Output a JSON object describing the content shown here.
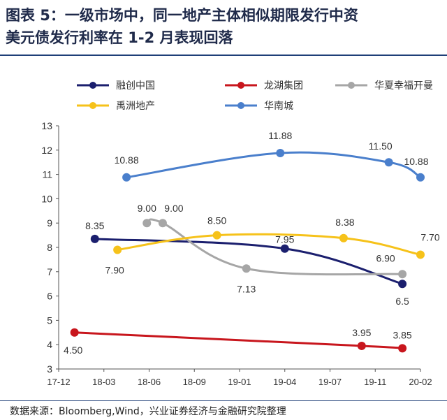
{
  "title_line1": "图表 5：一级市场中，同一地产主体相似期限发行中资",
  "title_line2": "美元债发行利率在 1-2 月表现回落",
  "source": "数据来源：Bloomberg,Wind，兴业证券经济与金融研究院整理",
  "chart_data": {
    "type": "line",
    "title": "",
    "xlabel": "",
    "ylabel": "",
    "x_ticks": [
      "17-12",
      "18-03",
      "18-06",
      "18-09",
      "19-01",
      "19-04",
      "19-07",
      "19-11",
      "20-02"
    ],
    "y_ticks": [
      3,
      4,
      5,
      6,
      7,
      8,
      9,
      10,
      11,
      12,
      13
    ],
    "ylim": [
      3,
      13
    ],
    "grid": false,
    "legend_position": "top",
    "series": [
      {
        "name": "融创中国",
        "color": "#1b1f6e",
        "points": [
          {
            "x": 0.8,
            "y": 8.35
          },
          {
            "x": 5.0,
            "y": 7.95
          },
          {
            "x": 7.6,
            "y": 6.5
          }
        ],
        "labels": [
          "8.35",
          "",
          "6.5"
        ]
      },
      {
        "name": "龙湖集团",
        "color": "#c8161d",
        "points": [
          {
            "x": 0.35,
            "y": 4.5
          },
          {
            "x": 6.7,
            "y": 3.95
          },
          {
            "x": 7.6,
            "y": 3.85
          }
        ],
        "labels": [
          "4.50",
          "3.95",
          "3.85"
        ]
      },
      {
        "name": "华夏幸福开曼",
        "color": "#a6a6a6",
        "points": [
          {
            "x": 1.95,
            "y": 9.0
          },
          {
            "x": 2.3,
            "y": 9.0
          },
          {
            "x": 4.15,
            "y": 7.13
          },
          {
            "x": 7.6,
            "y": 6.9
          }
        ],
        "labels": [
          "9.00",
          "9.00",
          "7.13",
          "6.90"
        ]
      },
      {
        "name": "禹洲地产",
        "color": "#f6c21a",
        "points": [
          {
            "x": 1.3,
            "y": 7.9
          },
          {
            "x": 3.5,
            "y": 8.5
          },
          {
            "x": 6.3,
            "y": 8.38
          },
          {
            "x": 8.0,
            "y": 7.7
          }
        ],
        "labels": [
          "7.90",
          "8.50",
          "8.38",
          "7.70"
        ]
      },
      {
        "name": "华南城",
        "color": "#4a7fcc",
        "points": [
          {
            "x": 1.5,
            "y": 10.88
          },
          {
            "x": 4.9,
            "y": 11.88
          },
          {
            "x": 7.3,
            "y": 11.5
          },
          {
            "x": 8.0,
            "y": 10.88
          }
        ],
        "labels": [
          "10.88",
          "11.88",
          "11.50",
          "10.88"
        ]
      }
    ],
    "extra_labels": [
      {
        "text": "7.95"
      }
    ]
  }
}
